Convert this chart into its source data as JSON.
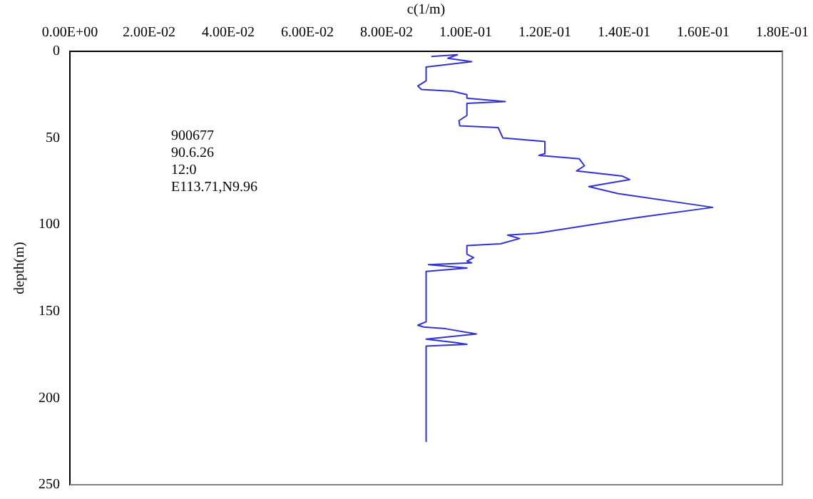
{
  "chart_data": {
    "type": "line",
    "xlabel": "c(1/m)",
    "ylabel": "depth(m)",
    "annotations": [
      "900677",
      "90.6.26",
      "12:0",
      "E113.71,N9.96"
    ],
    "xlim": [
      0,
      0.18
    ],
    "xticks": [
      {
        "value": 0,
        "label": "0.00E+00"
      },
      {
        "value": 0.02,
        "label": "2.00E-02"
      },
      {
        "value": 0.04,
        "label": "4.00E-02"
      },
      {
        "value": 0.06,
        "label": "6.00E-02"
      },
      {
        "value": 0.08,
        "label": "8.00E-02"
      },
      {
        "value": 0.1,
        "label": "1.00E-01"
      },
      {
        "value": 0.12,
        "label": "1.20E-01"
      },
      {
        "value": 0.14,
        "label": "1.40E-01"
      },
      {
        "value": 0.16,
        "label": "1.60E-01"
      },
      {
        "value": 0.18,
        "label": "1.80E-01"
      }
    ],
    "ylim": [
      250,
      0
    ],
    "yticks": [
      0,
      50,
      100,
      150,
      200,
      250
    ],
    "grid": false,
    "legend": false,
    "marker": "none",
    "line_style": "solid",
    "series": [
      {
        "color": "#3333cc",
        "x": [
          0.0913,
          0.0979,
          0.0955,
          0.1015,
          0.09,
          0.09,
          0.0879,
          0.0888,
          0.0967,
          0.1003,
          0.1003,
          0.11,
          0.1003,
          0.1003,
          0.0983,
          0.0985,
          0.1082,
          0.1094,
          0.12,
          0.12,
          0.1185,
          0.1287,
          0.13,
          0.128,
          0.1396,
          0.1414,
          0.1311,
          0.1384,
          0.1624,
          0.143,
          0.1178,
          0.1106,
          0.1136,
          0.1088,
          0.1003,
          0.1003,
          0.102,
          0.1003,
          0.1015,
          0.0906,
          0.1003,
          0.09,
          0.09,
          0.0879,
          0.0894,
          0.0949,
          0.1027,
          0.09,
          0.0973,
          0.1003,
          0.09,
          0.09
        ],
        "values": [
          3,
          2,
          4,
          6,
          9,
          17,
          20,
          22,
          23,
          25,
          27,
          29,
          30,
          37,
          40,
          43,
          44,
          50,
          52,
          59,
          60,
          62,
          66,
          69,
          72,
          74,
          78,
          82,
          90,
          96,
          105,
          106,
          108,
          111,
          112,
          117,
          119,
          121,
          122,
          123,
          125,
          127,
          156,
          158,
          159,
          160,
          163,
          166,
          168,
          169,
          170,
          225
        ]
      }
    ]
  }
}
